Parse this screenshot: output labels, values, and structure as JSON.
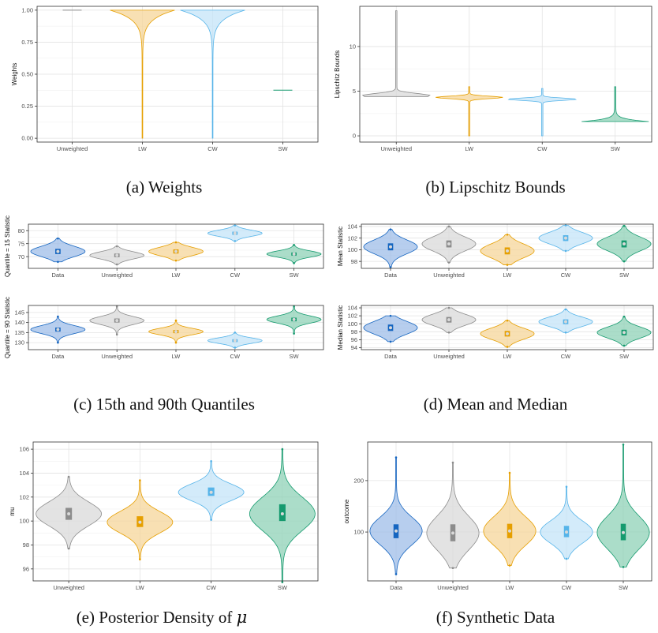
{
  "figure": {
    "captions": [
      {
        "text": "(a) Weights"
      },
      {
        "text": "(b) Lipschitz Bounds"
      },
      {
        "text": "(c) 15th and 90th Quantiles"
      },
      {
        "text": "(d) Mean and Median"
      },
      {
        "text": "(e) Posterior Density of ",
        "math": "μ"
      },
      {
        "text": "(f) Synthetic Data"
      }
    ]
  },
  "colors": {
    "Data": "#1565c0",
    "Unweighted": "#8c8c8c",
    "LW": "#e69f00",
    "CW": "#56b4e9",
    "SW": "#159a6e",
    "Data_fill": "#9fbde8",
    "Unweighted_fill": "#d9d9d9",
    "LW_fill": "#f5d59a",
    "CW_fill": "#c4e4f8",
    "SW_fill": "#8fd1b7"
  },
  "chart_data": [
    {
      "id": "a",
      "type": "violin",
      "ylabel": "Weights",
      "xlabel": "",
      "categories": [
        "Unweighted",
        "LW",
        "CW",
        "SW"
      ],
      "ylim": [
        -0.03,
        1.03
      ],
      "yticks": [
        0.0,
        0.25,
        0.5,
        0.75,
        1.0
      ],
      "ytick_labels": [
        "0.00",
        "0.25",
        "0.50",
        "0.75",
        "1.00"
      ],
      "series": [
        {
          "category": "Unweighted",
          "shape": "point",
          "value": 1.0
        },
        {
          "category": "LW",
          "min": 0.0,
          "max": 1.0,
          "mode": 1.0,
          "shape": "top-heavy"
        },
        {
          "category": "CW",
          "min": 0.0,
          "max": 1.0,
          "mode": 1.0,
          "shape": "top-heavy"
        },
        {
          "category": "SW",
          "shape": "point",
          "value": 0.375
        }
      ],
      "grid": true
    },
    {
      "id": "b",
      "type": "violin",
      "ylabel": "Lipschitz Bounds",
      "xlabel": "",
      "categories": [
        "Unweighted",
        "LW",
        "CW",
        "SW"
      ],
      "ylim": [
        -0.7,
        14.5
      ],
      "yticks": [
        0,
        5,
        10
      ],
      "ytick_labels": [
        "0",
        "5",
        "10"
      ],
      "series": [
        {
          "category": "Unweighted",
          "min": 4.4,
          "max": 14.0,
          "mode": 4.5,
          "shape": "narrow-skewed"
        },
        {
          "category": "LW",
          "min": 0.0,
          "max": 5.5,
          "mode": 4.3,
          "shape": "narrow-skewed"
        },
        {
          "category": "CW",
          "min": 0.0,
          "max": 5.3,
          "mode": 4.1,
          "shape": "narrow-skewed"
        },
        {
          "category": "SW",
          "min": 1.6,
          "max": 5.5,
          "mode": 1.7,
          "shape": "bottom-heavy"
        }
      ],
      "grid": true
    },
    {
      "id": "c1",
      "type": "violin",
      "ylabel": "Quantile = 15 Statistic",
      "xlabel": "",
      "categories": [
        "Data",
        "Unweighted",
        "LW",
        "CW",
        "SW"
      ],
      "ylim": [
        65.5,
        82.5
      ],
      "yticks": [
        70,
        75,
        80
      ],
      "ytick_labels": [
        "70",
        "75",
        "80"
      ],
      "series": [
        {
          "category": "Data",
          "min": 68,
          "max": 77,
          "median": 72,
          "q1": 71,
          "q3": 73
        },
        {
          "category": "Unweighted",
          "min": 67,
          "max": 74,
          "median": 70.5,
          "q1": 69.8,
          "q3": 71.2
        },
        {
          "category": "LW",
          "min": 68.5,
          "max": 75.5,
          "median": 72,
          "q1": 71.2,
          "q3": 72.8
        },
        {
          "category": "CW",
          "min": 76,
          "max": 82,
          "median": 79,
          "q1": 78.4,
          "q3": 79.6
        },
        {
          "category": "SW",
          "min": 67.5,
          "max": 74.5,
          "median": 71,
          "q1": 70.4,
          "q3": 71.6
        }
      ],
      "grid": true
    },
    {
      "id": "c2",
      "type": "violin",
      "ylabel": "Quantile = 90 Statistic",
      "xlabel": "",
      "categories": [
        "Data",
        "Unweighted",
        "LW",
        "CW",
        "SW"
      ],
      "ylim": [
        126.5,
        148.5
      ],
      "yticks": [
        130,
        135,
        140,
        145
      ],
      "ytick_labels": [
        "130",
        "135",
        "140",
        "145"
      ],
      "series": [
        {
          "category": "Data",
          "min": 130,
          "max": 143,
          "median": 136.5,
          "q1": 135.5,
          "q3": 137.5
        },
        {
          "category": "Unweighted",
          "min": 134,
          "max": 148,
          "median": 141,
          "q1": 140,
          "q3": 142
        },
        {
          "category": "LW",
          "min": 130,
          "max": 141,
          "median": 135.5,
          "q1": 134.7,
          "q3": 136.3
        },
        {
          "category": "CW",
          "min": 127.5,
          "max": 135,
          "median": 131,
          "q1": 130.3,
          "q3": 131.7
        },
        {
          "category": "SW",
          "min": 134.5,
          "max": 148,
          "median": 141.5,
          "q1": 140.6,
          "q3": 142.4
        }
      ],
      "grid": true
    },
    {
      "id": "d1",
      "type": "violin",
      "ylabel": "Mean Statistic",
      "xlabel": "",
      "categories": [
        "Data",
        "Unweighted",
        "LW",
        "CW",
        "SW"
      ],
      "ylim": [
        96.8,
        104.4
      ],
      "yticks": [
        98,
        100,
        102,
        104
      ],
      "ytick_labels": [
        "98",
        "100",
        "102",
        "104"
      ],
      "series": [
        {
          "category": "Data",
          "min": 97,
          "max": 103.5,
          "median": 100.5,
          "q1": 99.9,
          "q3": 101.1
        },
        {
          "category": "Unweighted",
          "min": 97.8,
          "max": 104,
          "median": 101,
          "q1": 100.4,
          "q3": 101.6
        },
        {
          "category": "LW",
          "min": 97.4,
          "max": 102.6,
          "median": 99.8,
          "q1": 99.2,
          "q3": 100.4
        },
        {
          "category": "CW",
          "min": 99.8,
          "max": 104.2,
          "median": 102,
          "q1": 101.5,
          "q3": 102.5
        },
        {
          "category": "SW",
          "min": 98,
          "max": 104.1,
          "median": 101,
          "q1": 100.4,
          "q3": 101.6
        }
      ],
      "grid": true
    },
    {
      "id": "d2",
      "type": "violin",
      "ylabel": "Median Statistic",
      "xlabel": "",
      "categories": [
        "Data",
        "Unweighted",
        "LW",
        "CW",
        "SW"
      ],
      "ylim": [
        93.5,
        104.6
      ],
      "yticks": [
        94,
        96,
        98,
        100,
        102,
        104
      ],
      "ytick_labels": [
        "94",
        "96",
        "98",
        "100",
        "102",
        "104"
      ],
      "series": [
        {
          "category": "Data",
          "min": 95.5,
          "max": 102,
          "median": 99,
          "q1": 98.2,
          "q3": 99.8
        },
        {
          "category": "Unweighted",
          "min": 97.8,
          "max": 104,
          "median": 101,
          "q1": 100.3,
          "q3": 101.7
        },
        {
          "category": "LW",
          "min": 94.2,
          "max": 100.8,
          "median": 97.5,
          "q1": 96.8,
          "q3": 98.2
        },
        {
          "category": "CW",
          "min": 97.8,
          "max": 103.6,
          "median": 100.5,
          "q1": 99.9,
          "q3": 101.1
        },
        {
          "category": "SW",
          "min": 94.5,
          "max": 101.8,
          "median": 97.8,
          "q1": 97.1,
          "q3": 98.5
        }
      ],
      "grid": true
    },
    {
      "id": "e",
      "type": "violin",
      "ylabel": "mu",
      "xlabel": "",
      "categories": [
        "Unweighted",
        "LW",
        "CW",
        "SW"
      ],
      "ylim": [
        95,
        106.6
      ],
      "yticks": [
        96,
        98,
        100,
        102,
        104,
        106
      ],
      "ytick_labels": [
        "96",
        "98",
        "100",
        "102",
        "104",
        "106"
      ],
      "series": [
        {
          "category": "Unweighted",
          "min": 97.7,
          "max": 103.7,
          "median": 100.6,
          "q1": 100.1,
          "q3": 101.1
        },
        {
          "category": "LW",
          "min": 96.8,
          "max": 103.4,
          "median": 99.9,
          "q1": 99.5,
          "q3": 100.4
        },
        {
          "category": "CW",
          "min": 100.1,
          "max": 105.0,
          "median": 102.4,
          "q1": 102.1,
          "q3": 102.8
        },
        {
          "category": "SW",
          "min": 94.9,
          "max": 106.0,
          "median": 100.6,
          "q1": 100.0,
          "q3": 101.4
        }
      ],
      "grid": true
    },
    {
      "id": "f",
      "type": "violin",
      "ylabel": "outcome",
      "xlabel": "",
      "categories": [
        "Data",
        "Unweighted",
        "LW",
        "CW",
        "SW"
      ],
      "ylim": [
        5,
        275
      ],
      "yticks": [
        100,
        200
      ],
      "ytick_labels": [
        "100",
        "200"
      ],
      "series": [
        {
          "category": "Data",
          "min": 18,
          "max": 245,
          "median": 102,
          "q1": 88,
          "q3": 115
        },
        {
          "category": "Unweighted",
          "min": 30,
          "max": 235,
          "median": 98,
          "q1": 82,
          "q3": 115
        },
        {
          "category": "LW",
          "min": 35,
          "max": 215,
          "median": 102,
          "q1": 88,
          "q3": 116
        },
        {
          "category": "CW",
          "min": 48,
          "max": 188,
          "median": 100,
          "q1": 90,
          "q3": 112
        },
        {
          "category": "SW",
          "min": 32,
          "max": 270,
          "median": 99,
          "q1": 84,
          "q3": 116
        }
      ],
      "grid": true
    }
  ]
}
